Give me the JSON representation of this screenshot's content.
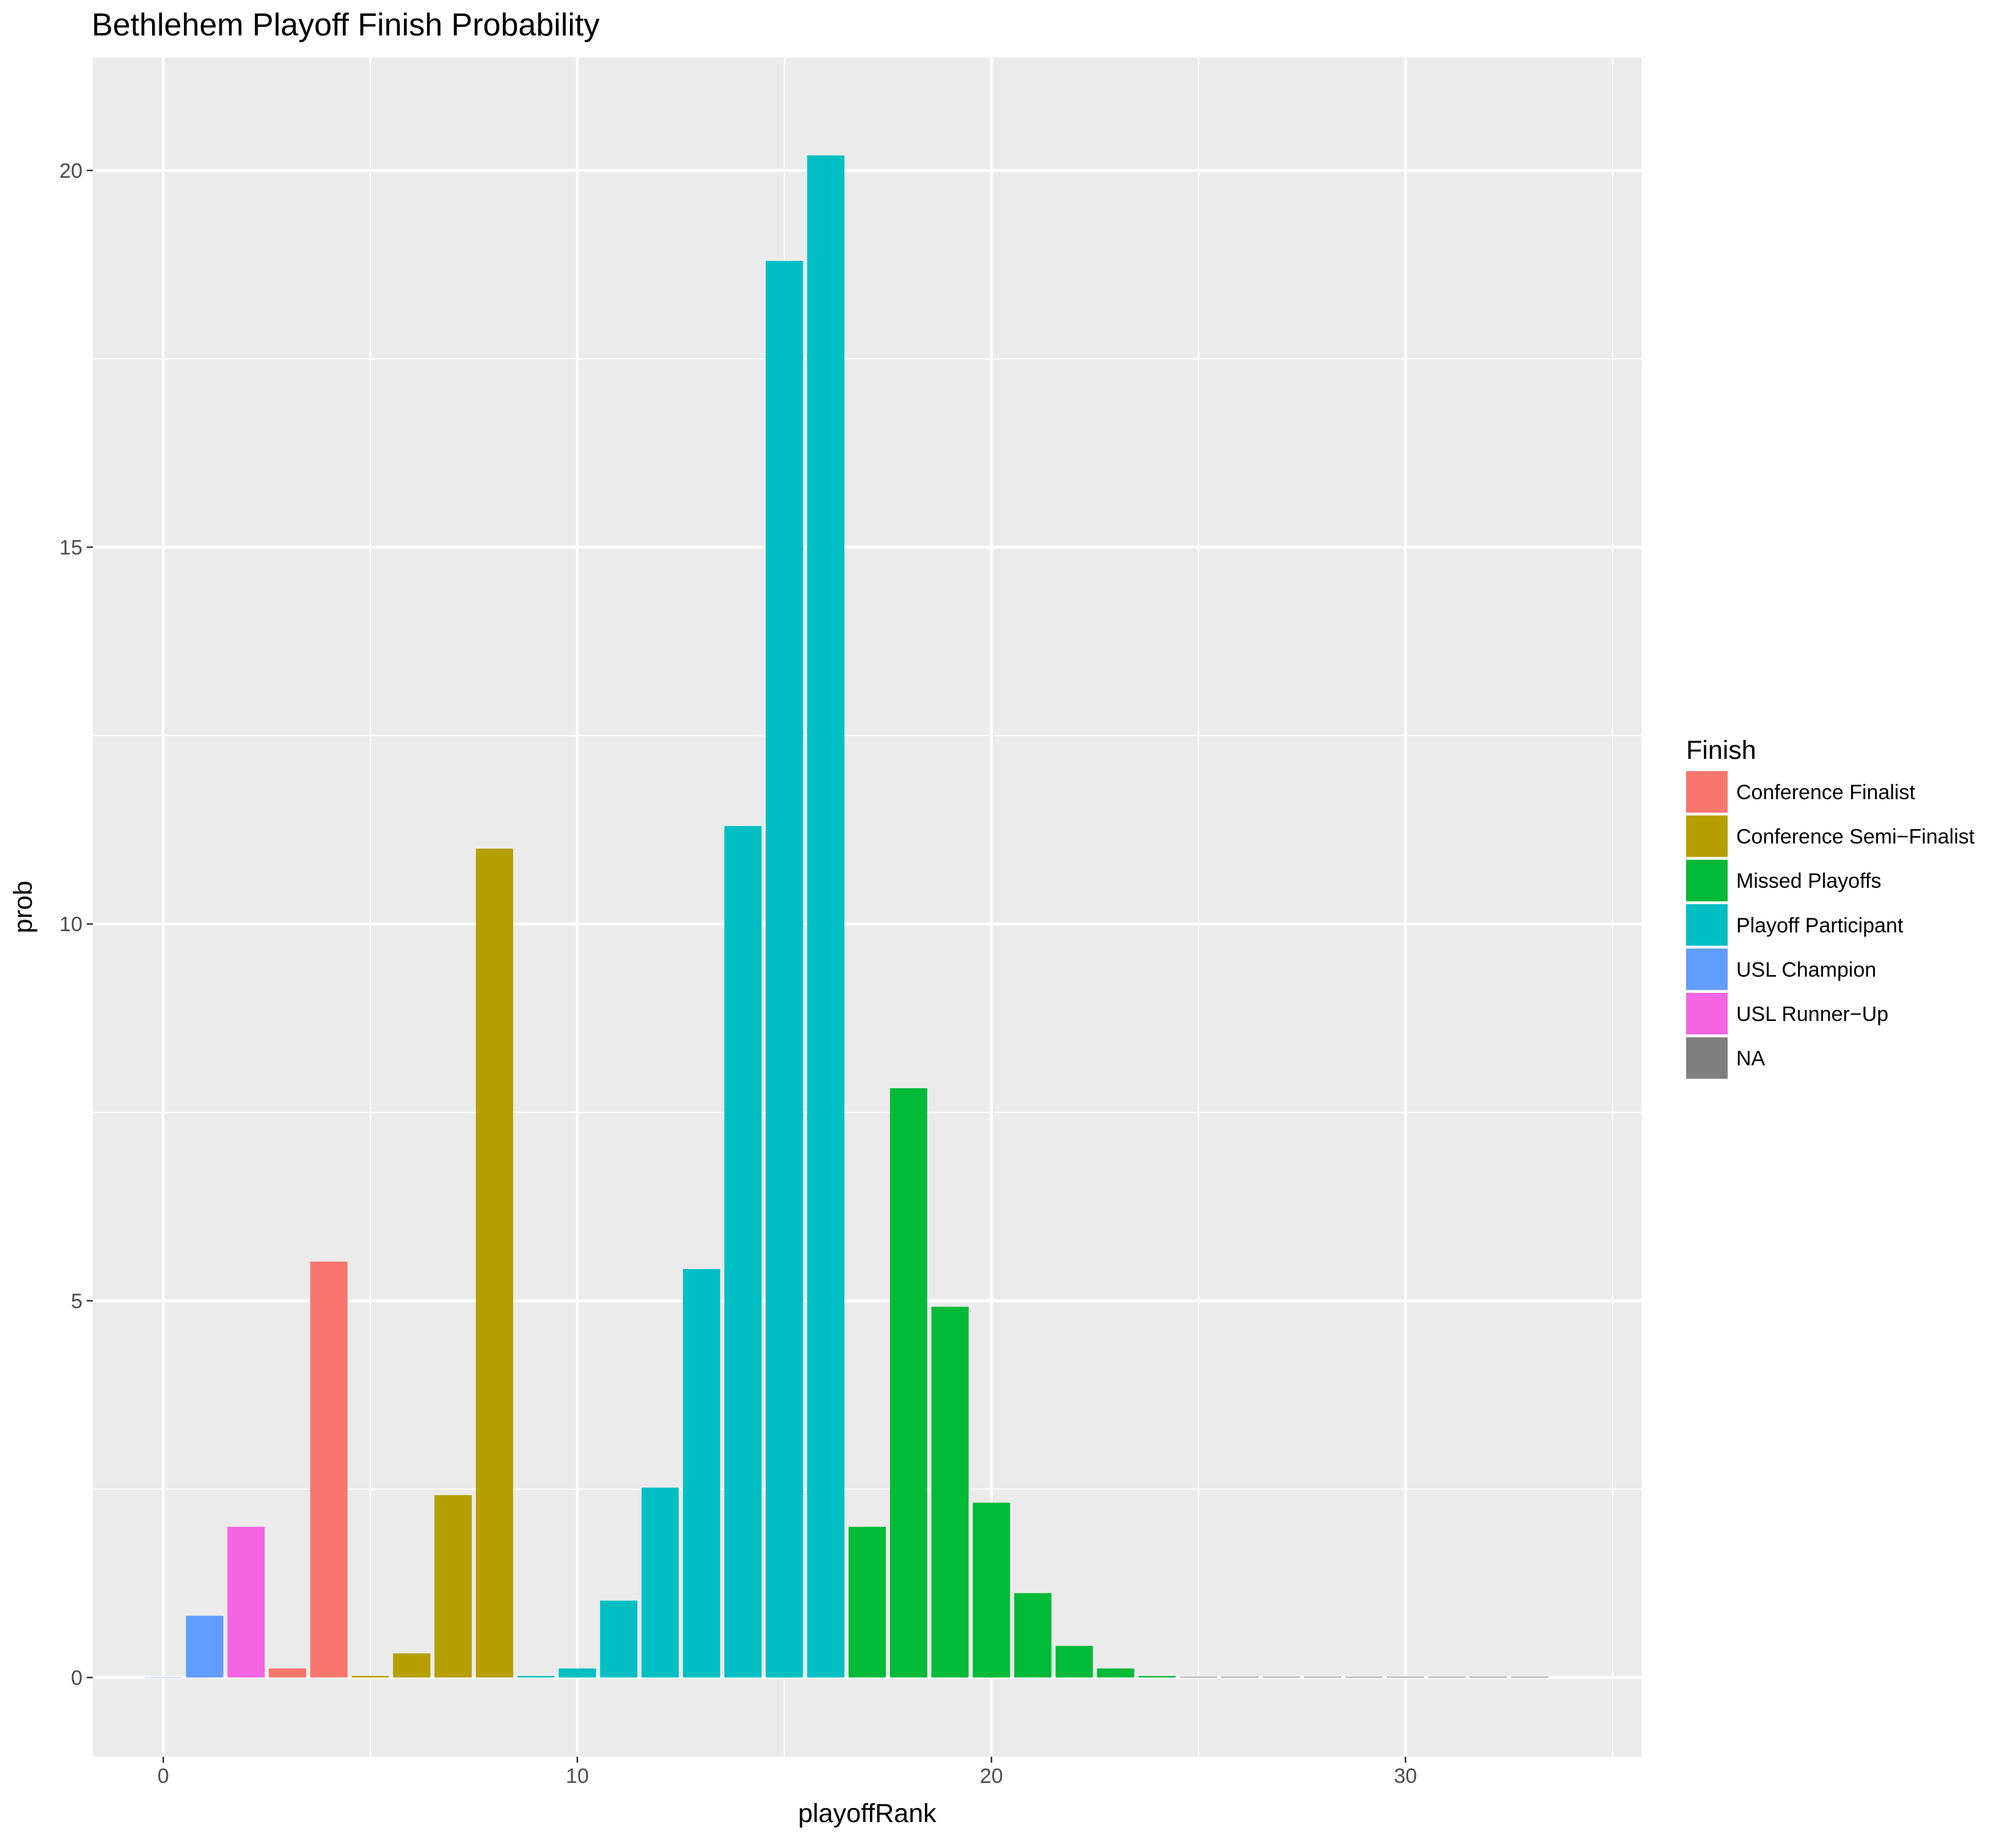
{
  "chart_data": {
    "type": "bar",
    "title": "Bethlehem Playoff Finish Probability",
    "xlabel": "playoffRank",
    "ylabel": "prob",
    "xlim": [
      -1.7,
      35.7
    ],
    "ylim": [
      -1.05,
      21.5
    ],
    "x_ticks": [
      0,
      10,
      20,
      30
    ],
    "x_minor_ticks": [
      5,
      15,
      25,
      35
    ],
    "y_ticks": [
      0,
      5,
      10,
      15,
      20
    ],
    "y_minor_ticks": [
      2.5,
      7.5,
      12.5,
      17.5
    ],
    "grid": true,
    "legend": {
      "title": "Finish",
      "placement": "right",
      "entries": [
        {
          "name": "Conference Finalist",
          "color": "#F8766D"
        },
        {
          "name": "Conference Semi−Finalist",
          "color": "#B79F00"
        },
        {
          "name": "Missed Playoffs",
          "color": "#00BA38"
        },
        {
          "name": "Playoff Participant",
          "color": "#00BFC4"
        },
        {
          "name": "USL Champion",
          "color": "#619CFF"
        },
        {
          "name": "USL Runner−Up",
          "color": "#F564E3"
        },
        {
          "name": "NA",
          "color": "#7F7F7F"
        }
      ]
    },
    "bars": [
      {
        "x": 0,
        "value": 0,
        "finish": "USL Champion"
      },
      {
        "x": 1,
        "value": 0.82,
        "finish": "USL Champion"
      },
      {
        "x": 2,
        "value": 2.0,
        "finish": "USL Runner−Up"
      },
      {
        "x": 3,
        "value": 0.12,
        "finish": "Conference Finalist"
      },
      {
        "x": 4,
        "value": 5.52,
        "finish": "Conference Finalist"
      },
      {
        "x": 5,
        "value": 0.02,
        "finish": "Conference Semi−Finalist"
      },
      {
        "x": 6,
        "value": 0.32,
        "finish": "Conference Semi−Finalist"
      },
      {
        "x": 7,
        "value": 2.42,
        "finish": "Conference Semi−Finalist"
      },
      {
        "x": 8,
        "value": 11.0,
        "finish": "Conference Semi−Finalist"
      },
      {
        "x": 9,
        "value": 0.02,
        "finish": "Playoff Participant"
      },
      {
        "x": 10,
        "value": 0.12,
        "finish": "Playoff Participant"
      },
      {
        "x": 11,
        "value": 1.02,
        "finish": "Playoff Participant"
      },
      {
        "x": 12,
        "value": 2.52,
        "finish": "Playoff Participant"
      },
      {
        "x": 13,
        "value": 5.42,
        "finish": "Playoff Participant"
      },
      {
        "x": 14,
        "value": 11.3,
        "finish": "Playoff Participant"
      },
      {
        "x": 15,
        "value": 18.8,
        "finish": "Playoff Participant"
      },
      {
        "x": 16,
        "value": 20.2,
        "finish": "Playoff Participant"
      },
      {
        "x": 17,
        "value": 2.0,
        "finish": "Missed Playoffs"
      },
      {
        "x": 18,
        "value": 7.82,
        "finish": "Missed Playoffs"
      },
      {
        "x": 19,
        "value": 4.92,
        "finish": "Missed Playoffs"
      },
      {
        "x": 20,
        "value": 2.32,
        "finish": "Missed Playoffs"
      },
      {
        "x": 21,
        "value": 1.12,
        "finish": "Missed Playoffs"
      },
      {
        "x": 22,
        "value": 0.42,
        "finish": "Missed Playoffs"
      },
      {
        "x": 23,
        "value": 0.12,
        "finish": "Missed Playoffs"
      },
      {
        "x": 24,
        "value": 0.02,
        "finish": "Missed Playoffs"
      },
      {
        "x": 25,
        "value": 0.01,
        "finish": "NA"
      },
      {
        "x": 26,
        "value": 0.01,
        "finish": "NA"
      },
      {
        "x": 27,
        "value": 0.01,
        "finish": "NA"
      },
      {
        "x": 28,
        "value": 0.01,
        "finish": "NA"
      },
      {
        "x": 29,
        "value": 0.01,
        "finish": "NA"
      },
      {
        "x": 30,
        "value": 0.01,
        "finish": "NA"
      },
      {
        "x": 31,
        "value": 0.01,
        "finish": "NA"
      },
      {
        "x": 32,
        "value": 0.01,
        "finish": "NA"
      },
      {
        "x": 33,
        "value": 0.01,
        "finish": "NA"
      }
    ]
  }
}
